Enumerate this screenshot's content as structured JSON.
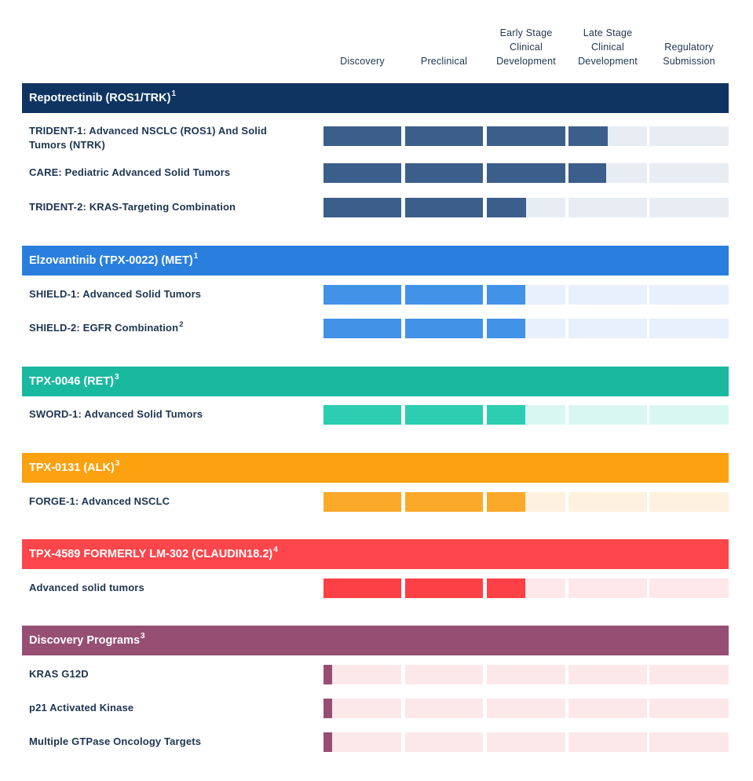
{
  "chart_data": {
    "type": "table",
    "stages": [
      [
        "Discovery"
      ],
      [
        "Preclinical"
      ],
      [
        "Early Stage",
        "Clinical",
        "Development"
      ],
      [
        "Late Stage",
        "Clinical",
        "Development"
      ],
      [
        "Regulatory",
        "Submission"
      ]
    ],
    "groups": [
      {
        "name": "Repotrectinib (ROS1/TRK)",
        "footnote": "1",
        "header_color": "#0f3462",
        "fill_color": "#3c5e8b",
        "track_color": "#e8edf4",
        "programs": [
          {
            "label": "TRIDENT-1: Advanced NSCLC (ROS1) And Solid Tumors (NTRK)",
            "footnote": "",
            "progress": 3.5
          },
          {
            "label": "CARE: Pediatric Advanced Solid Tumors",
            "footnote": "",
            "progress": 3.48
          },
          {
            "label": "TRIDENT-2: KRAS-Targeting Combination",
            "footnote": "",
            "progress": 2.5
          }
        ]
      },
      {
        "name": "Elzovantinib (TPX-0022) (MET)",
        "footnote": "1",
        "header_color": "#2a7fde",
        "fill_color": "#4292e8",
        "track_color": "#e7f0fb",
        "programs": [
          {
            "label": "SHIELD-1: Advanced Solid Tumors",
            "footnote": "",
            "progress": 2.49
          },
          {
            "label": "SHIELD-2: EGFR Combination",
            "footnote": "2",
            "progress": 2.49
          }
        ]
      },
      {
        "name": "TPX-0046 (RET)",
        "footnote": "3",
        "header_color": "#19b9a0",
        "fill_color": "#2ccdb0",
        "track_color": "#d9f7f1",
        "programs": [
          {
            "label": "SWORD-1: Advanced Solid Tumors",
            "footnote": "",
            "progress": 2.49
          }
        ]
      },
      {
        "name": "TPX-0131 (ALK)",
        "footnote": "3",
        "header_color": "#fca10f",
        "fill_color": "#fba928",
        "track_color": "#fef1df",
        "programs": [
          {
            "label": "FORGE-1: Advanced NSCLC",
            "footnote": "",
            "progress": 2.49
          }
        ]
      },
      {
        "name": "TPX-4589 FORMERLY LM-302 (CLAUDIN18.2)",
        "footnote": "4",
        "header_color": "#fc464b",
        "fill_color": "#fd3f46",
        "track_color": "#fee8e9",
        "programs": [
          {
            "label": "Advanced solid tumors",
            "footnote": "",
            "progress": 2.49
          }
        ]
      },
      {
        "name": "Discovery Programs",
        "footnote": "3",
        "header_color": "#964f73",
        "fill_color": "#964f73",
        "track_color": "#fde8e9",
        "programs": [
          {
            "label": "KRAS G12D",
            "footnote": "",
            "progress": 0.1
          },
          {
            "label": "p21 Activated Kinase",
            "footnote": "",
            "progress": 0.1
          },
          {
            "label": "Multiple GTPase Oncology Targets",
            "footnote": "",
            "progress": 0.1
          }
        ]
      }
    ]
  }
}
